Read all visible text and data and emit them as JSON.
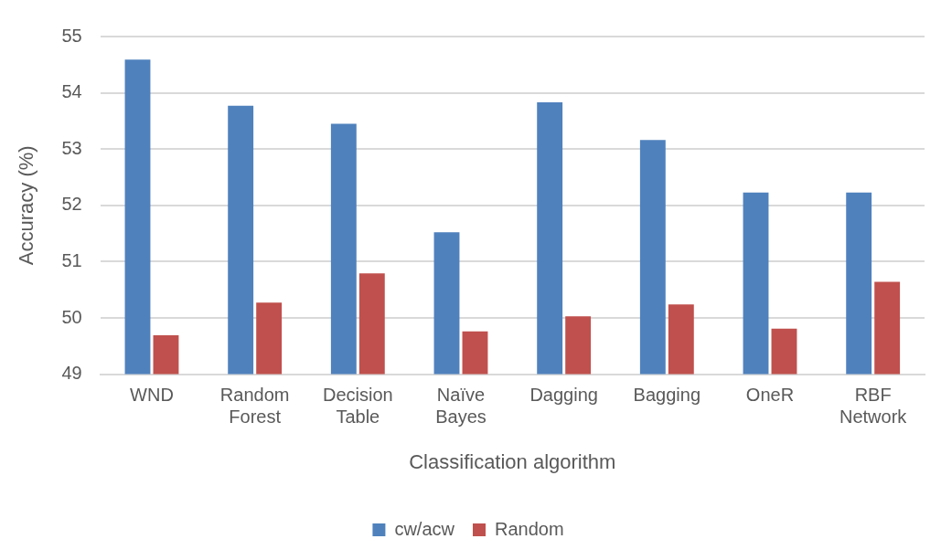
{
  "chart_data": {
    "type": "bar",
    "xlabel": "Classification algorithm",
    "ylabel": "Accuracy (%)",
    "categories": [
      "WND",
      "Random Forest",
      "Decision Table",
      "Naïve Bayes",
      "Dagging",
      "Bagging",
      "OneR",
      "RBF Network"
    ],
    "series": [
      {
        "name": "cw/acw",
        "color": "#4f81bd",
        "values": [
          54.59,
          53.77,
          53.45,
          51.52,
          53.83,
          53.16,
          52.23,
          52.23
        ]
      },
      {
        "name": "Random",
        "color": "#c0504d",
        "values": [
          49.69,
          50.27,
          50.79,
          49.76,
          50.03,
          50.24,
          49.81,
          50.64
        ]
      }
    ],
    "ylim": [
      49,
      55
    ],
    "yticks": [
      49,
      50,
      51,
      52,
      53,
      54,
      55
    ],
    "grid": "y",
    "legend": "bottom"
  }
}
